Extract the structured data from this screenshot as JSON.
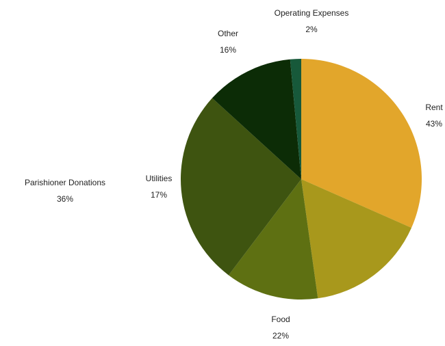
{
  "chart_data": {
    "type": "pie",
    "categories": [
      "Rent",
      "Food",
      "Utilities",
      "Parishioner Donations",
      "Other",
      "Operating Expenses"
    ],
    "values": [
      43,
      22,
      17,
      36,
      16,
      2
    ],
    "colors": [
      "#e2a62b",
      "#a8981c",
      "#5e7012",
      "#3e5410",
      "#0c2c06",
      "#17593a"
    ]
  }
}
